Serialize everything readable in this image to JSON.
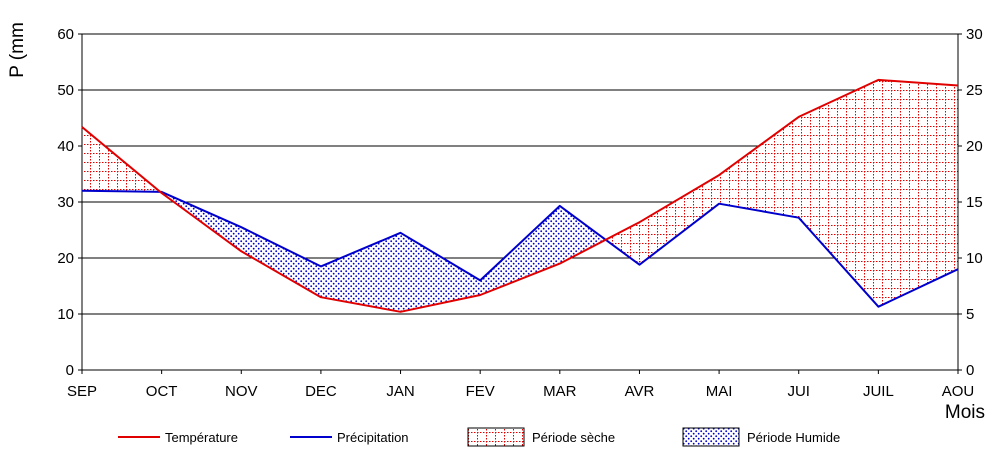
{
  "chart_data": {
    "type": "line",
    "categories": [
      "SEP",
      "OCT",
      "NOV",
      "DEC",
      "JAN",
      "FEV",
      "MAR",
      "AVR",
      "MAI",
      "JUI",
      "JUIL",
      "AOU"
    ],
    "series": [
      {
        "name": "Température",
        "axis": "right",
        "color": "#e00000",
        "values": [
          21.7,
          15.8,
          10.6,
          6.5,
          5.2,
          6.7,
          9.5,
          13.2,
          17.4,
          22.6,
          25.9,
          25.4
        ]
      },
      {
        "name": "Précipitation",
        "axis": "left",
        "color": "#0000cc",
        "values": [
          32.0,
          31.8,
          25.5,
          18.5,
          24.5,
          16.0,
          29.3,
          18.8,
          29.7,
          27.2,
          11.3,
          18.0
        ]
      }
    ],
    "fills": [
      {
        "name": "Période sèche",
        "pattern": "red-grid",
        "color": "#e00000"
      },
      {
        "name": "Période Humide",
        "pattern": "blue-dots",
        "color": "#0000cc"
      }
    ],
    "ylabel": "P (mm",
    "xlabel": "Mois",
    "ylim_left": [
      0,
      60
    ],
    "ylim_right": [
      0,
      30
    ],
    "yticks_left": [
      0,
      10,
      20,
      30,
      40,
      50,
      60
    ],
    "yticks_right": [
      0,
      5,
      10,
      15,
      20,
      25,
      30
    ],
    "grid": "horizontal",
    "legend": "bottom"
  }
}
